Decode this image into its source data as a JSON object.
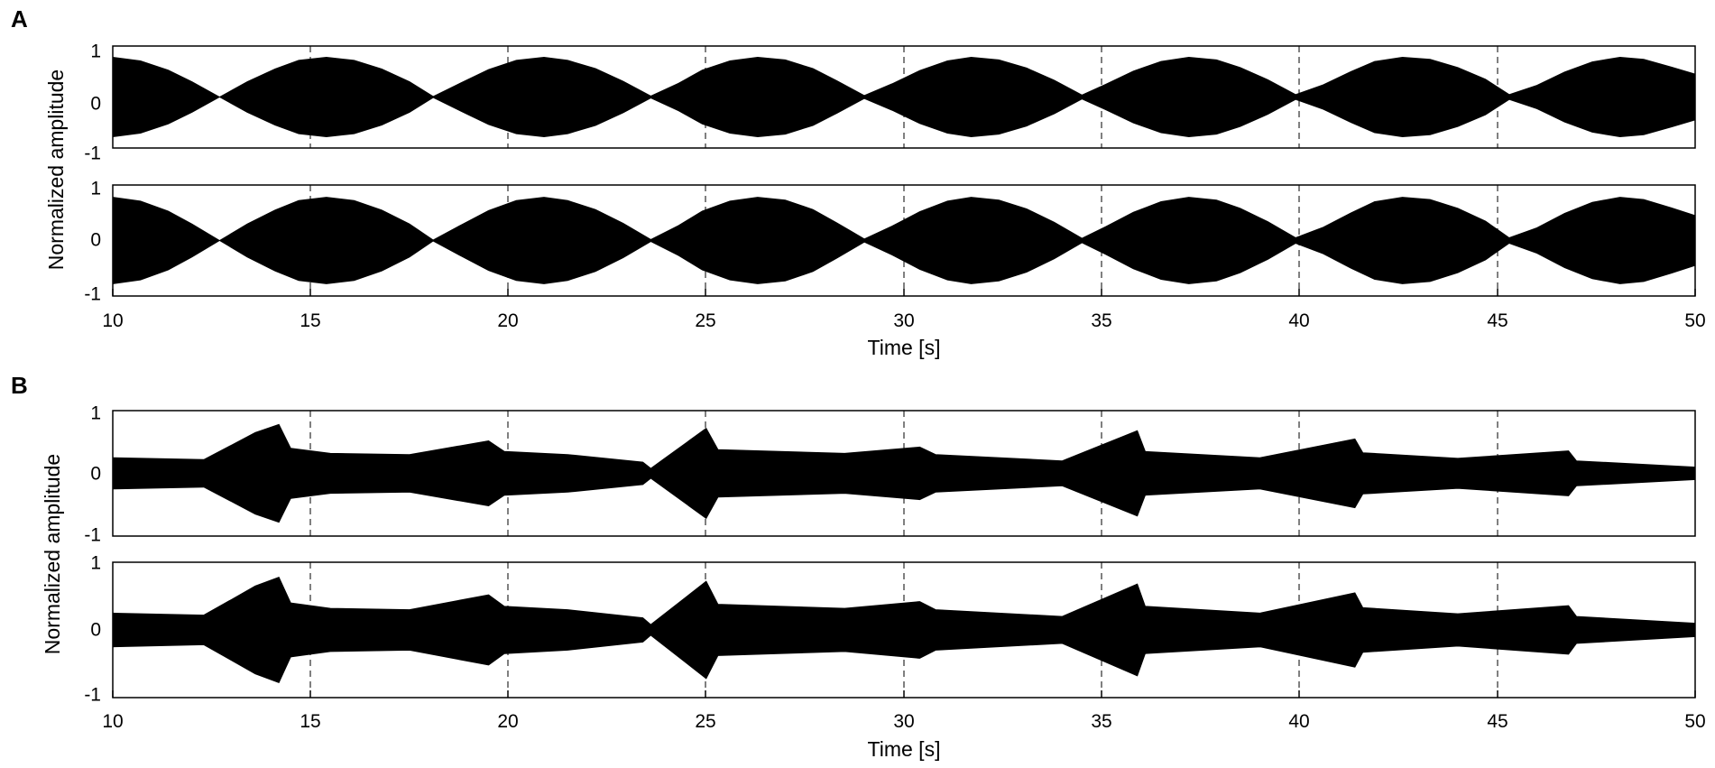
{
  "panels": [
    {
      "letter": "A",
      "xlabel": "Time [s]",
      "ylabel": "Normalized amplitude",
      "x_ticks": [
        "10",
        "15",
        "20",
        "25",
        "30",
        "35",
        "40",
        "45",
        "50"
      ],
      "y_ticks": [
        "-1",
        "0",
        "1"
      ]
    },
    {
      "letter": "B",
      "xlabel": "Time [s]",
      "ylabel": "Normalized amplitude",
      "x_ticks": [
        "10",
        "15",
        "20",
        "25",
        "30",
        "35",
        "40",
        "45",
        "50"
      ],
      "y_ticks": [
        "-1",
        "0",
        "1"
      ]
    }
  ],
  "chart_data": [
    {
      "panel": "A",
      "type": "line",
      "subplot": 1,
      "title": "",
      "xlabel": "",
      "ylabel": "",
      "xlim": [
        10,
        50
      ],
      "ylim": [
        -1,
        1
      ],
      "grid": "x-only dashed",
      "x_ticks": [
        10,
        15,
        20,
        25,
        30,
        35,
        40,
        45,
        50
      ],
      "y_ticks": [
        -1,
        0,
        1
      ],
      "style": "filled oscillation envelope (beating)",
      "envelope": {
        "x": [
          10,
          10.7,
          11.4,
          12.0,
          12.7,
          13.4,
          14.1,
          14.7,
          15.4,
          16.1,
          16.8,
          17.5,
          18.1,
          18.8,
          19.5,
          20.2,
          20.9,
          21.5,
          22.2,
          22.9,
          23.6,
          24.3,
          24.9,
          25.6,
          26.3,
          27.0,
          27.7,
          28.3,
          29.0,
          29.7,
          30.4,
          31.1,
          31.7,
          32.4,
          33.1,
          33.8,
          34.5,
          35.1,
          35.8,
          36.5,
          37.2,
          37.9,
          38.5,
          39.2,
          39.9,
          40.6,
          41.3,
          41.9,
          42.6,
          43.3,
          44.0,
          44.7,
          45.3,
          46.0,
          46.7,
          47.4,
          48.1,
          48.7,
          49.4,
          50
        ],
        "upper": [
          0.78,
          0.71,
          0.53,
          0.3,
          0.0,
          0.3,
          0.55,
          0.72,
          0.78,
          0.72,
          0.55,
          0.3,
          0.01,
          0.28,
          0.54,
          0.72,
          0.78,
          0.72,
          0.56,
          0.31,
          0.02,
          0.27,
          0.53,
          0.71,
          0.78,
          0.73,
          0.56,
          0.32,
          0.03,
          0.26,
          0.52,
          0.71,
          0.78,
          0.73,
          0.57,
          0.33,
          0.04,
          0.25,
          0.51,
          0.7,
          0.78,
          0.73,
          0.58,
          0.34,
          0.05,
          0.24,
          0.5,
          0.7,
          0.78,
          0.74,
          0.58,
          0.35,
          0.05,
          0.23,
          0.49,
          0.69,
          0.78,
          0.74,
          0.59,
          0.45
        ],
        "lower": [
          -0.78,
          -0.71,
          -0.53,
          -0.3,
          0.0,
          -0.3,
          -0.55,
          -0.72,
          -0.78,
          -0.72,
          -0.55,
          -0.3,
          -0.01,
          -0.28,
          -0.54,
          -0.72,
          -0.78,
          -0.72,
          -0.56,
          -0.31,
          -0.02,
          -0.27,
          -0.53,
          -0.71,
          -0.78,
          -0.73,
          -0.56,
          -0.32,
          -0.03,
          -0.26,
          -0.52,
          -0.71,
          -0.78,
          -0.73,
          -0.57,
          -0.33,
          -0.04,
          -0.25,
          -0.51,
          -0.7,
          -0.78,
          -0.73,
          -0.58,
          -0.34,
          -0.05,
          -0.24,
          -0.5,
          -0.7,
          -0.78,
          -0.74,
          -0.58,
          -0.35,
          -0.05,
          -0.23,
          -0.49,
          -0.69,
          -0.78,
          -0.74,
          -0.59,
          -0.45
        ]
      }
    },
    {
      "panel": "A",
      "type": "line",
      "subplot": 2,
      "title": "",
      "xlabel": "Time [s]",
      "ylabel": "",
      "xlim": [
        10,
        50
      ],
      "ylim": [
        -1,
        1
      ],
      "grid": "x-only dashed",
      "x_ticks": [
        10,
        15,
        20,
        25,
        30,
        35,
        40,
        45,
        50
      ],
      "y_ticks": [
        -1,
        0,
        1
      ],
      "style": "filled oscillation envelope (beating)",
      "envelope": {
        "x": [
          10,
          10.7,
          11.4,
          12.0,
          12.7,
          13.4,
          14.1,
          14.7,
          15.4,
          16.1,
          16.8,
          17.5,
          18.1,
          18.8,
          19.5,
          20.2,
          20.9,
          21.5,
          22.2,
          22.9,
          23.6,
          24.3,
          24.9,
          25.6,
          26.3,
          27.0,
          27.7,
          28.3,
          29.0,
          29.7,
          30.4,
          31.1,
          31.7,
          32.4,
          33.1,
          33.8,
          34.5,
          35.1,
          35.8,
          36.5,
          37.2,
          37.9,
          38.5,
          39.2,
          39.9,
          40.6,
          41.3,
          41.9,
          42.6,
          43.3,
          44.0,
          44.7,
          45.3,
          46.0,
          46.7,
          47.4,
          48.1,
          48.7,
          49.4,
          50
        ],
        "upper": [
          0.78,
          0.71,
          0.53,
          0.3,
          0.0,
          0.3,
          0.55,
          0.72,
          0.78,
          0.72,
          0.55,
          0.3,
          0.01,
          0.28,
          0.54,
          0.72,
          0.78,
          0.72,
          0.56,
          0.31,
          0.02,
          0.27,
          0.53,
          0.71,
          0.78,
          0.73,
          0.56,
          0.32,
          0.03,
          0.26,
          0.52,
          0.71,
          0.78,
          0.73,
          0.57,
          0.33,
          0.04,
          0.25,
          0.51,
          0.7,
          0.78,
          0.73,
          0.58,
          0.34,
          0.05,
          0.24,
          0.5,
          0.7,
          0.78,
          0.74,
          0.58,
          0.35,
          0.05,
          0.23,
          0.49,
          0.69,
          0.78,
          0.74,
          0.59,
          0.45
        ],
        "lower": [
          -0.78,
          -0.71,
          -0.53,
          -0.3,
          0.0,
          -0.3,
          -0.55,
          -0.72,
          -0.78,
          -0.72,
          -0.55,
          -0.3,
          -0.01,
          -0.28,
          -0.54,
          -0.72,
          -0.78,
          -0.72,
          -0.56,
          -0.31,
          -0.02,
          -0.27,
          -0.53,
          -0.71,
          -0.78,
          -0.73,
          -0.56,
          -0.32,
          -0.03,
          -0.26,
          -0.52,
          -0.71,
          -0.78,
          -0.73,
          -0.57,
          -0.33,
          -0.04,
          -0.25,
          -0.51,
          -0.7,
          -0.78,
          -0.73,
          -0.58,
          -0.34,
          -0.05,
          -0.24,
          -0.5,
          -0.7,
          -0.78,
          -0.74,
          -0.58,
          -0.35,
          -0.05,
          -0.23,
          -0.49,
          -0.69,
          -0.78,
          -0.74,
          -0.59,
          -0.45
        ]
      }
    },
    {
      "panel": "B",
      "type": "line",
      "subplot": 1,
      "title": "",
      "xlabel": "",
      "ylabel": "",
      "xlim": [
        10,
        50
      ],
      "ylim": [
        -1,
        1
      ],
      "grid": "x-only dashed",
      "x_ticks": [
        10,
        15,
        20,
        25,
        30,
        35,
        40,
        45,
        50
      ],
      "y_ticks": [
        -1,
        0,
        1
      ],
      "style": "filled oscillation envelope (bursts)",
      "envelope": {
        "x": [
          10,
          12.3,
          13.0,
          13.6,
          14.2,
          14.5,
          15.5,
          17.5,
          19.5,
          19.9,
          21.5,
          23.4,
          23.6,
          25.0,
          25.3,
          28.5,
          30.4,
          30.8,
          34.0,
          35.9,
          36.1,
          39.0,
          41.4,
          41.6,
          44.0,
          46.8,
          47.0,
          50
        ],
        "upper": [
          0.25,
          0.22,
          0.45,
          0.65,
          0.78,
          0.4,
          0.32,
          0.3,
          0.52,
          0.35,
          0.3,
          0.18,
          0.08,
          0.72,
          0.38,
          0.32,
          0.42,
          0.3,
          0.2,
          0.68,
          0.35,
          0.25,
          0.55,
          0.33,
          0.24,
          0.36,
          0.2,
          0.1
        ],
        "lower": [
          -0.25,
          -0.22,
          -0.45,
          -0.65,
          -0.78,
          -0.4,
          -0.32,
          -0.3,
          -0.52,
          -0.35,
          -0.3,
          -0.18,
          -0.08,
          -0.72,
          -0.38,
          -0.32,
          -0.42,
          -0.3,
          -0.2,
          -0.68,
          -0.35,
          -0.25,
          -0.55,
          -0.33,
          -0.24,
          -0.36,
          -0.2,
          -0.1
        ]
      }
    },
    {
      "panel": "B",
      "type": "line",
      "subplot": 2,
      "title": "",
      "xlabel": "Time [s]",
      "ylabel": "",
      "xlim": [
        10,
        50
      ],
      "ylim": [
        -1,
        1
      ],
      "grid": "x-only dashed",
      "x_ticks": [
        10,
        15,
        20,
        25,
        30,
        35,
        40,
        45,
        50
      ],
      "y_ticks": [
        -1,
        0,
        1
      ],
      "style": "filled oscillation envelope (bursts)",
      "envelope": {
        "x": [
          10,
          12.3,
          13.0,
          13.6,
          14.2,
          14.5,
          15.5,
          17.5,
          19.5,
          19.9,
          21.5,
          23.4,
          23.6,
          25.0,
          25.3,
          28.5,
          30.4,
          30.8,
          34.0,
          35.9,
          36.1,
          39.0,
          41.4,
          41.6,
          44.0,
          46.8,
          47.0,
          50
        ],
        "upper": [
          0.25,
          0.22,
          0.45,
          0.65,
          0.78,
          0.4,
          0.32,
          0.3,
          0.52,
          0.35,
          0.3,
          0.18,
          0.08,
          0.72,
          0.38,
          0.32,
          0.42,
          0.3,
          0.2,
          0.68,
          0.35,
          0.25,
          0.55,
          0.33,
          0.24,
          0.36,
          0.2,
          0.1
        ],
        "lower": [
          -0.25,
          -0.22,
          -0.45,
          -0.65,
          -0.78,
          -0.4,
          -0.32,
          -0.3,
          -0.52,
          -0.35,
          -0.3,
          -0.18,
          -0.08,
          -0.72,
          -0.38,
          -0.32,
          -0.42,
          -0.3,
          -0.2,
          -0.68,
          -0.35,
          -0.25,
          -0.55,
          -0.33,
          -0.24,
          -0.36,
          -0.2,
          -0.1
        ]
      }
    }
  ]
}
